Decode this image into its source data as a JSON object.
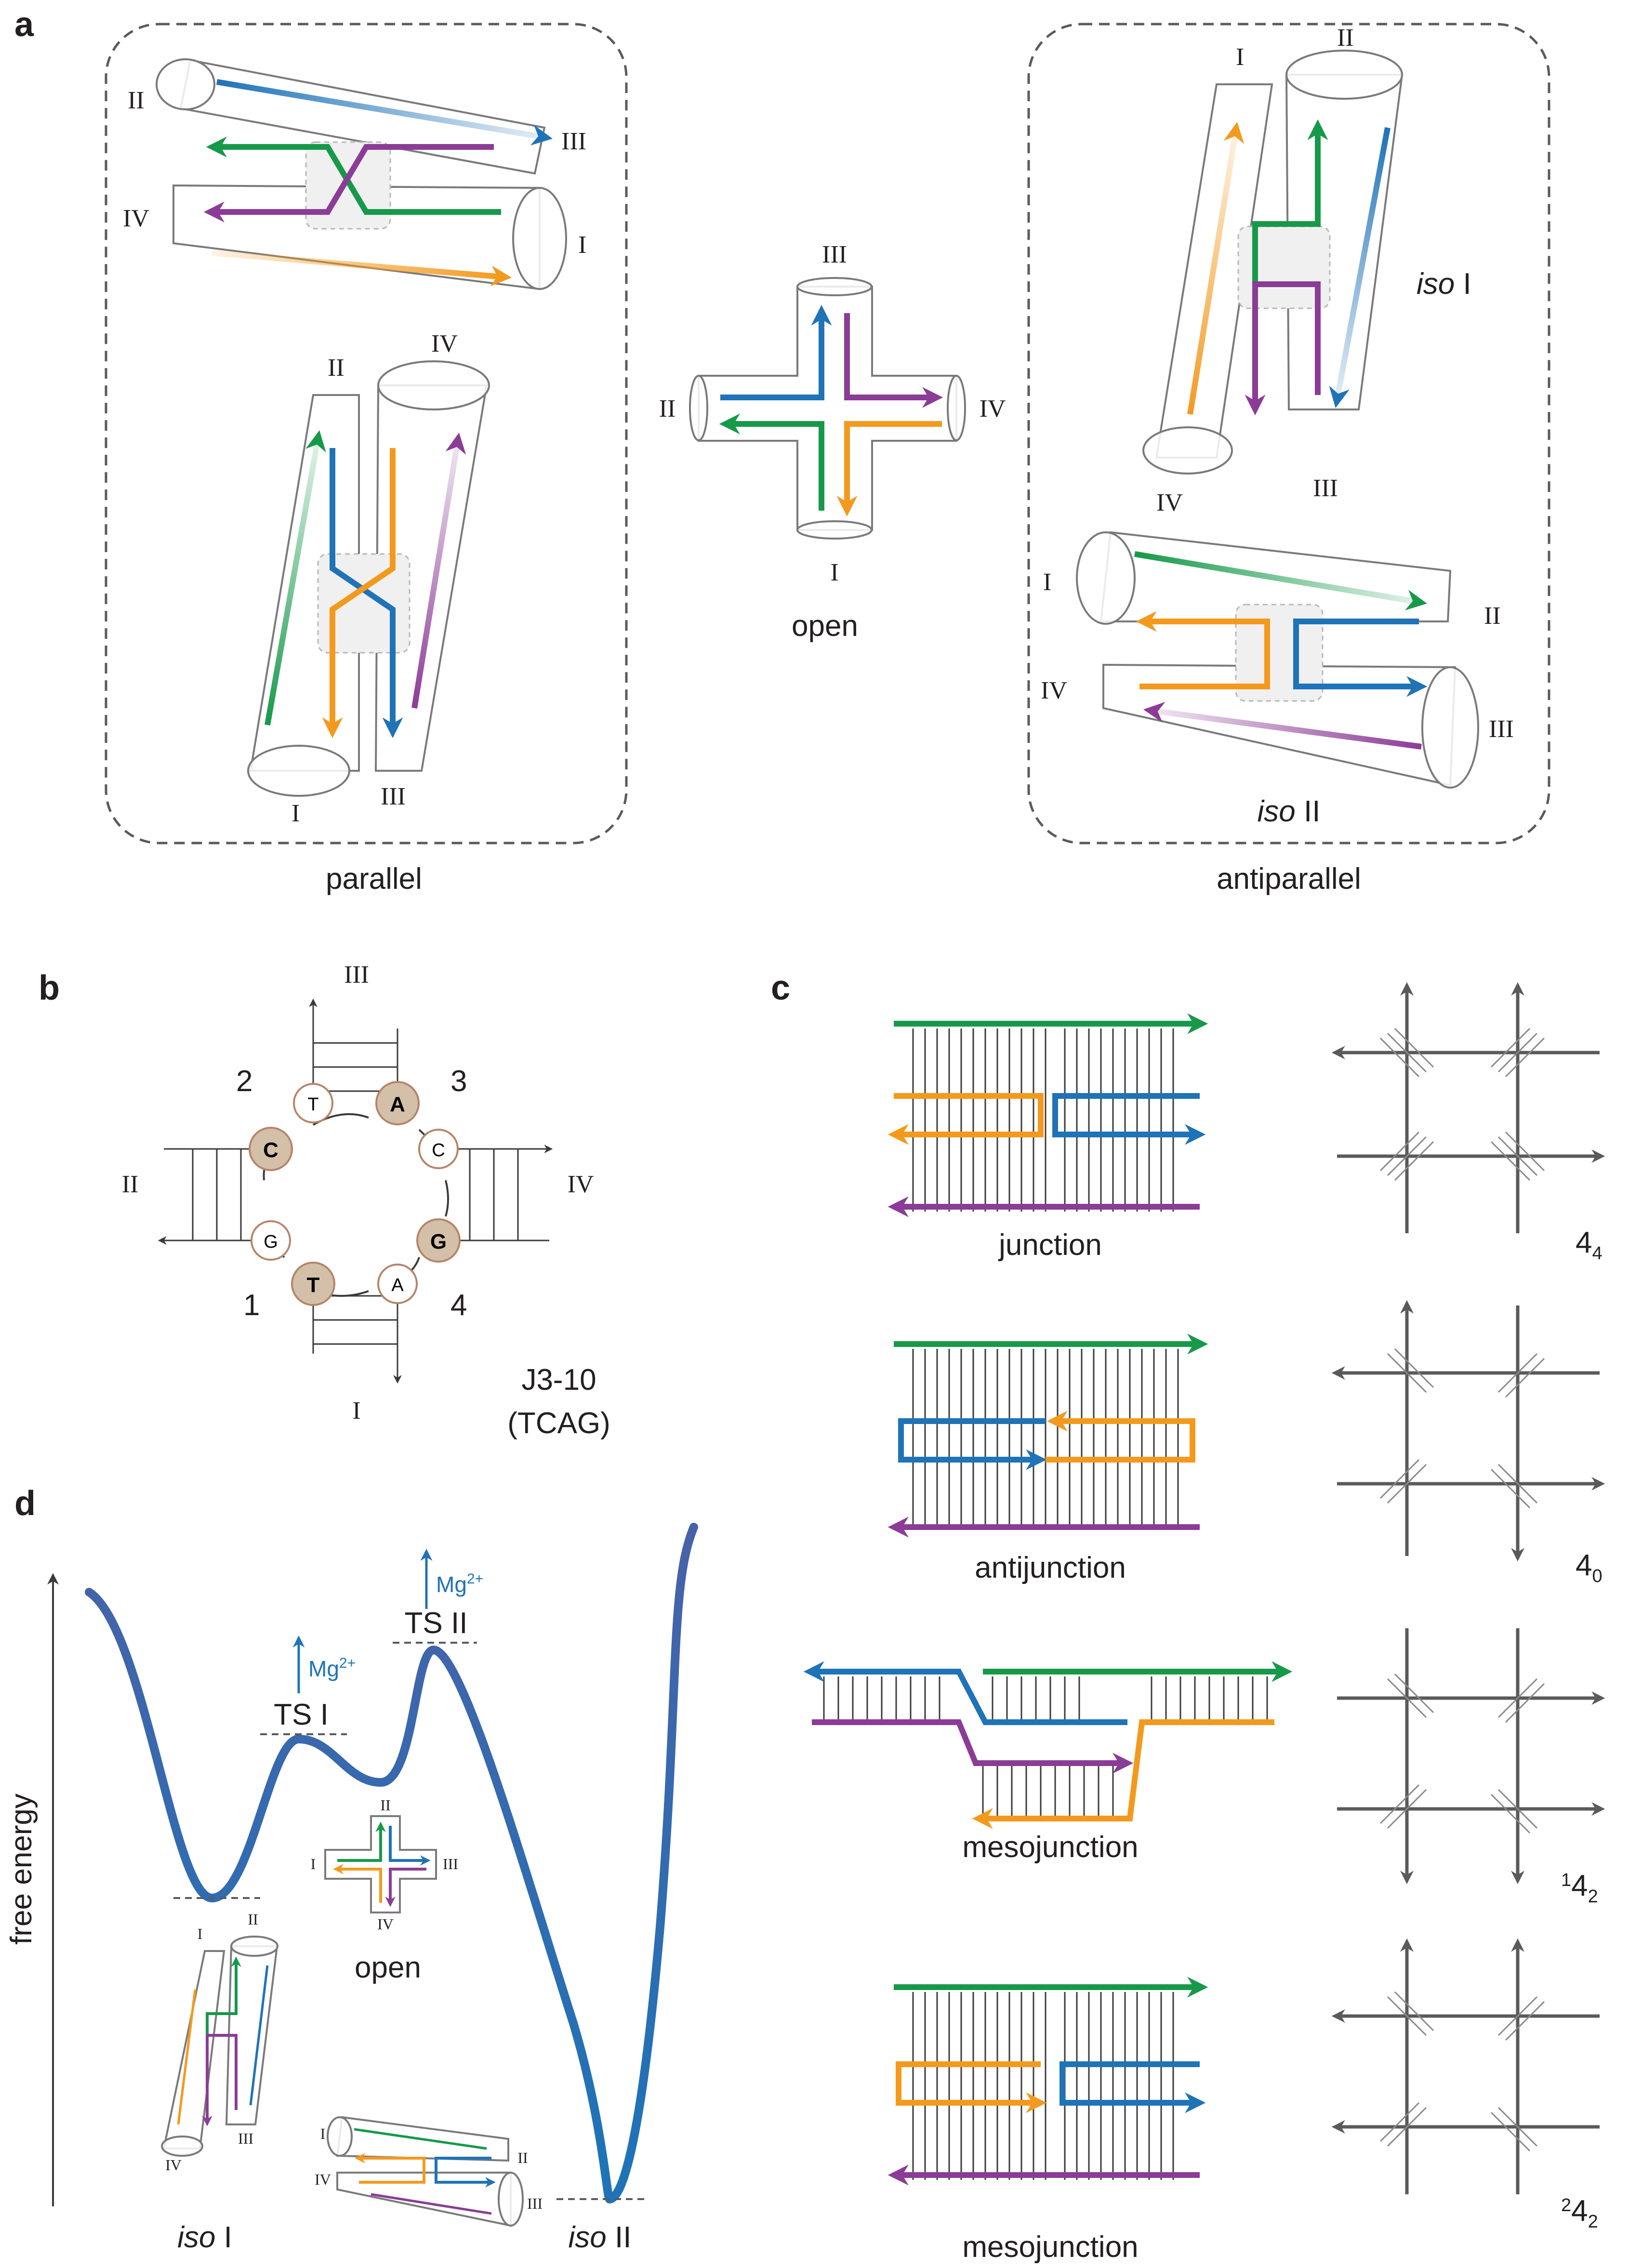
{
  "panels": {
    "a": "a",
    "b": "b",
    "c": "c",
    "d": "d"
  },
  "colors": {
    "blue": "#1f73b7",
    "green": "#17994a",
    "purple": "#8b3c96",
    "orange": "#f39a1e",
    "red": "#e8403e",
    "text": "#231f20",
    "mg": "#1f73b7",
    "node_fill_bold": "#d4bfa8"
  },
  "panel_a": {
    "arms": {
      "one": "I",
      "two": "II",
      "three": "III",
      "four": "IV"
    },
    "parallel_label": "parallel",
    "open_label": "open",
    "antiparallel_label": "antiparallel",
    "iso_prefix": "iso",
    "iso1_num": "I",
    "iso2_num": "II"
  },
  "panel_b": {
    "arm_labels": {
      "one": "I",
      "two": "II",
      "three": "III",
      "four": "IV"
    },
    "corner_labels": [
      "1",
      "2",
      "3",
      "4"
    ],
    "nodes": [
      {
        "base": "T",
        "bold": false
      },
      {
        "base": "A",
        "bold": true
      },
      {
        "base": "C",
        "bold": false
      },
      {
        "base": "G",
        "bold": true
      },
      {
        "base": "A",
        "bold": false
      },
      {
        "base": "T",
        "bold": true
      },
      {
        "base": "G",
        "bold": false
      },
      {
        "base": "C",
        "bold": true
      }
    ],
    "name": "J3-10",
    "sequence": "(TCAG)"
  },
  "panel_c": {
    "rows": [
      {
        "label": "junction",
        "notation_main": "4",
        "notation_sub": "4",
        "notation_pre": ""
      },
      {
        "label": "antijunction",
        "notation_main": "4",
        "notation_sub": "0",
        "notation_pre": ""
      },
      {
        "label": "mesojunction",
        "notation_main": "4",
        "notation_sub": "2",
        "notation_pre": "1"
      },
      {
        "label": "mesojunction",
        "notation_main": "4",
        "notation_sub": "2",
        "notation_pre": "2"
      }
    ]
  },
  "panel_d": {
    "y_axis_label": "free energy",
    "ts1": "TS I",
    "ts2": "TS II",
    "mg": "Mg",
    "mg_sup": "2+",
    "open_label": "open",
    "iso_prefix": "iso",
    "iso1_num": "I",
    "iso2_num": "II",
    "mini_arms": {
      "one": "I",
      "two": "II",
      "three": "III",
      "four": "IV"
    }
  }
}
